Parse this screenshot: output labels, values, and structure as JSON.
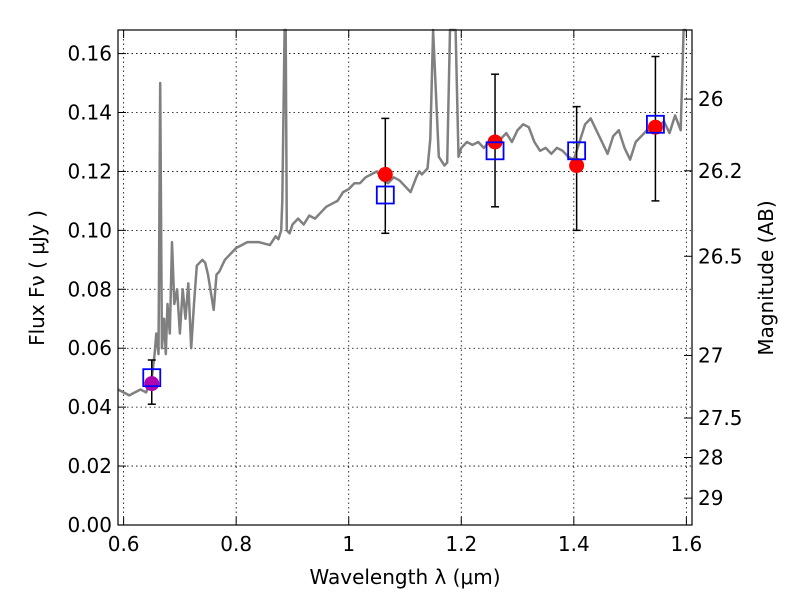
{
  "chart_data": {
    "type": "line",
    "xlabel": "Wavelength  λ (μm)",
    "ylabel": "Flux  Fν ( μJy )",
    "y2label": "Magnitude (AB)",
    "xlim": [
      0.59,
      1.61
    ],
    "ylim": [
      0.0,
      0.168
    ],
    "grid": true,
    "x_ticks": [
      "0.6",
      "0.8",
      "1",
      "1.2",
      "1.4",
      "1.6"
    ],
    "y_ticks": [
      "0.00",
      "0.02",
      "0.04",
      "0.06",
      "0.08",
      "0.10",
      "0.12",
      "0.14",
      "0.16"
    ],
    "y2_ticks": [
      {
        "label": "26",
        "mag": 26.0
      },
      {
        "label": "26.2",
        "mag": 26.2
      },
      {
        "label": "26.5",
        "mag": 26.5
      },
      {
        "label": "27",
        "mag": 27.0
      },
      {
        "label": "27.5",
        "mag": 27.5
      },
      {
        "label": "28",
        "mag": 28.0
      },
      {
        "label": "29",
        "mag": 29.0
      }
    ],
    "colors": {
      "spectrum": "#808080",
      "observed": "#ff0000",
      "model": "#0000ff",
      "errorbar": "#000000",
      "first_point": "#b000b0"
    },
    "series": [
      {
        "kind": "spectrum",
        "x": [
          0.59,
          0.61,
          0.62,
          0.63,
          0.64,
          0.65,
          0.655,
          0.658,
          0.662,
          0.665,
          0.668,
          0.672,
          0.675,
          0.678,
          0.682,
          0.686,
          0.69,
          0.695,
          0.7,
          0.705,
          0.71,
          0.715,
          0.72,
          0.725,
          0.73,
          0.74,
          0.745,
          0.75,
          0.76,
          0.765,
          0.77,
          0.78,
          0.79,
          0.8,
          0.82,
          0.84,
          0.86,
          0.87,
          0.875,
          0.88,
          0.882,
          0.886,
          0.888,
          0.89,
          0.895,
          0.9,
          0.91,
          0.92,
          0.93,
          0.94,
          0.95,
          0.96,
          0.97,
          0.98,
          0.99,
          1.0,
          1.01,
          1.02,
          1.03,
          1.04,
          1.05,
          1.06,
          1.07,
          1.08,
          1.09,
          1.1,
          1.11,
          1.12,
          1.125,
          1.13,
          1.14,
          1.145,
          1.15,
          1.16,
          1.17,
          1.175,
          1.18,
          1.185,
          1.19,
          1.195,
          1.2,
          1.21,
          1.22,
          1.23,
          1.24,
          1.25,
          1.26,
          1.27,
          1.28,
          1.29,
          1.3,
          1.31,
          1.32,
          1.33,
          1.34,
          1.35,
          1.36,
          1.37,
          1.38,
          1.39,
          1.4,
          1.41,
          1.42,
          1.43,
          1.44,
          1.45,
          1.46,
          1.47,
          1.48,
          1.49,
          1.5,
          1.51,
          1.52,
          1.53,
          1.54,
          1.55,
          1.56,
          1.57,
          1.58,
          1.59,
          1.595,
          1.6
        ],
        "y": [
          0.046,
          0.044,
          0.045,
          0.046,
          0.045,
          0.05,
          0.058,
          0.065,
          0.058,
          0.15,
          0.06,
          0.07,
          0.058,
          0.075,
          0.065,
          0.096,
          0.075,
          0.08,
          0.065,
          0.08,
          0.07,
          0.082,
          0.06,
          0.075,
          0.088,
          0.09,
          0.089,
          0.085,
          0.073,
          0.085,
          0.086,
          0.09,
          0.092,
          0.094,
          0.096,
          0.096,
          0.095,
          0.098,
          0.097,
          0.1,
          0.11,
          0.168,
          0.168,
          0.1,
          0.099,
          0.102,
          0.104,
          0.102,
          0.105,
          0.104,
          0.106,
          0.108,
          0.109,
          0.11,
          0.113,
          0.114,
          0.116,
          0.116,
          0.118,
          0.119,
          0.12,
          0.117,
          0.116,
          0.118,
          0.117,
          0.115,
          0.113,
          0.118,
          0.12,
          0.119,
          0.121,
          0.131,
          0.168,
          0.125,
          0.122,
          0.123,
          0.168,
          0.168,
          0.168,
          0.125,
          0.128,
          0.13,
          0.129,
          0.13,
          0.128,
          0.13,
          0.129,
          0.131,
          0.133,
          0.13,
          0.134,
          0.136,
          0.135,
          0.13,
          0.127,
          0.128,
          0.126,
          0.128,
          0.127,
          0.125,
          0.124,
          0.13,
          0.136,
          0.138,
          0.134,
          0.13,
          0.126,
          0.132,
          0.134,
          0.128,
          0.124,
          0.13,
          0.132,
          0.134,
          0.133,
          0.135,
          0.137,
          0.133,
          0.139,
          0.134,
          0.168,
          0.168
        ]
      },
      {
        "kind": "observed",
        "x": [
          0.65,
          1.065,
          1.26,
          1.405,
          1.545
        ],
        "y": [
          0.048,
          0.119,
          0.13,
          0.122,
          0.135
        ],
        "err_low": [
          0.041,
          0.099,
          0.108,
          0.1,
          0.11
        ],
        "err_high": [
          0.056,
          0.138,
          0.153,
          0.142,
          0.159
        ]
      },
      {
        "kind": "model",
        "x": [
          0.65,
          1.065,
          1.26,
          1.405,
          1.545
        ],
        "y": [
          0.05,
          0.112,
          0.127,
          0.127,
          0.136
        ]
      }
    ]
  }
}
